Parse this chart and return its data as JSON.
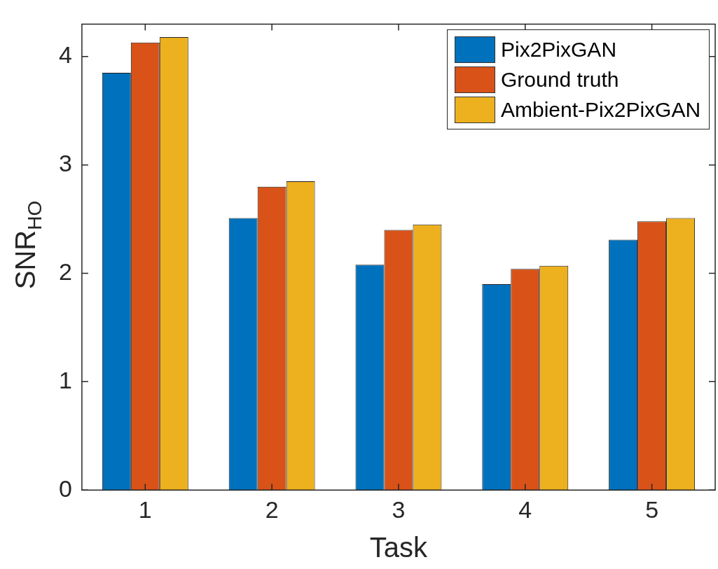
{
  "chart_data": {
    "type": "bar",
    "xlabel": "Task",
    "ylabel": "SNR$_{HO}$",
    "categories": [
      "1",
      "2",
      "3",
      "4",
      "5"
    ],
    "series": [
      {
        "name": "Pix2PixGAN",
        "color": "#0072bd",
        "values": [
          3.85,
          2.51,
          2.08,
          1.9,
          2.31
        ]
      },
      {
        "name": "Ground truth",
        "color": "#d95319",
        "values": [
          4.13,
          2.8,
          2.4,
          2.04,
          2.48
        ]
      },
      {
        "name": "Ambient-Pix2PixGAN",
        "color": "#edb120",
        "values": [
          4.18,
          2.85,
          2.45,
          2.07,
          2.51
        ]
      }
    ],
    "ylim": [
      0,
      4.3
    ],
    "yticks": [
      0,
      1,
      2,
      3,
      4
    ],
    "grid": false,
    "legend": "top right"
  }
}
